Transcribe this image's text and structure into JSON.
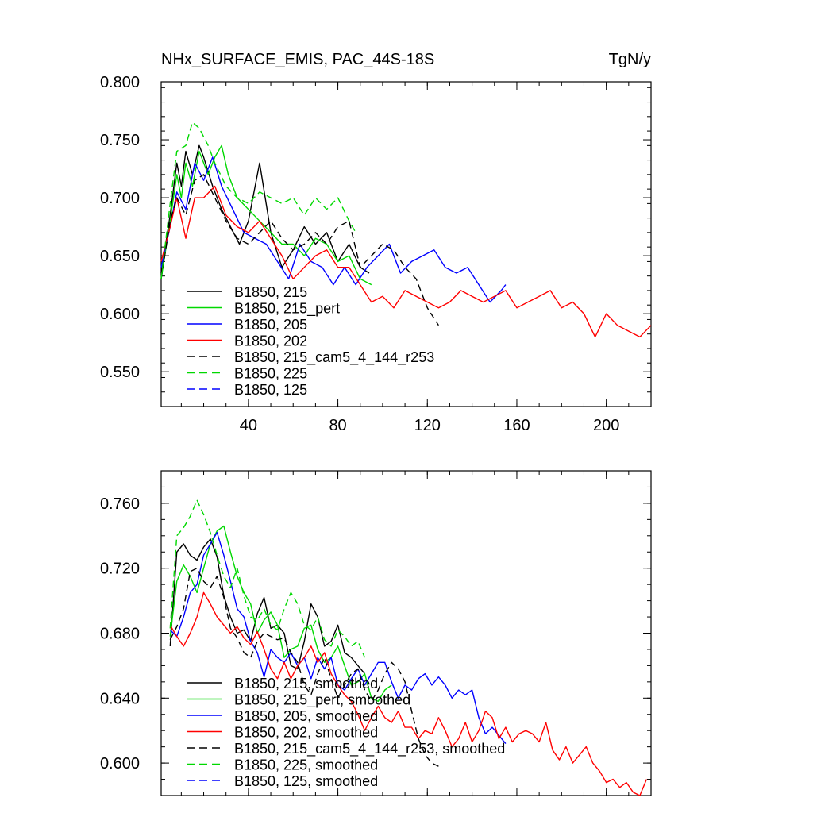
{
  "header": {
    "title": "NHx_SURFACE_EMIS, PAC_44S-18S",
    "units": "TgN/y"
  },
  "chart_data": [
    {
      "type": "line",
      "panel": "top",
      "xlim": [
        1,
        220
      ],
      "ylim": [
        0.52,
        0.8
      ],
      "x_ticks": [
        40,
        80,
        120,
        160,
        200
      ],
      "x_tick_labels": [
        "40",
        "80",
        "120",
        "160",
        "200"
      ],
      "y_ticks": [
        0.55,
        0.6,
        0.65,
        0.7,
        0.75,
        0.8
      ],
      "y_tick_labels": [
        "0.550",
        "0.600",
        "0.650",
        "0.700",
        "0.750",
        "0.800"
      ],
      "legend_position": "bottom-left",
      "series": [
        {
          "name": "B1850, 215",
          "color": "#000000",
          "dash": "solid",
          "x": [
            1,
            5,
            8,
            10,
            12,
            15,
            18,
            20,
            24,
            28,
            32,
            36,
            40,
            45,
            50,
            55,
            60,
            65,
            70,
            75,
            80,
            85,
            90,
            94
          ],
          "y": [
            0.635,
            0.685,
            0.73,
            0.71,
            0.74,
            0.72,
            0.745,
            0.735,
            0.71,
            0.69,
            0.675,
            0.66,
            0.68,
            0.73,
            0.67,
            0.64,
            0.655,
            0.675,
            0.66,
            0.67,
            0.645,
            0.66,
            0.64,
            0.635
          ]
        },
        {
          "name": "B1850, 215_pert",
          "color": "#00d800",
          "dash": "solid",
          "x": [
            1,
            5,
            8,
            10,
            12,
            15,
            18,
            22,
            25,
            28,
            31,
            35,
            40,
            45,
            50,
            55,
            60,
            65,
            70,
            75,
            80,
            85,
            90,
            95
          ],
          "y": [
            0.63,
            0.68,
            0.72,
            0.7,
            0.73,
            0.71,
            0.74,
            0.72,
            0.735,
            0.745,
            0.72,
            0.7,
            0.69,
            0.68,
            0.67,
            0.66,
            0.66,
            0.65,
            0.665,
            0.66,
            0.645,
            0.65,
            0.63,
            0.625
          ]
        },
        {
          "name": "B1850, 205",
          "color": "#0000ff",
          "dash": "solid",
          "x": [
            1,
            5,
            8,
            12,
            16,
            20,
            24,
            28,
            33,
            38,
            43,
            48,
            53,
            58,
            63,
            68,
            73,
            78,
            83,
            88,
            93,
            98,
            103,
            108,
            113,
            118,
            123,
            128,
            133,
            138,
            143,
            148,
            153,
            155
          ],
          "y": [
            0.64,
            0.675,
            0.705,
            0.69,
            0.73,
            0.715,
            0.735,
            0.71,
            0.69,
            0.67,
            0.665,
            0.66,
            0.645,
            0.63,
            0.66,
            0.645,
            0.64,
            0.625,
            0.64,
            0.625,
            0.64,
            0.65,
            0.66,
            0.635,
            0.645,
            0.65,
            0.655,
            0.64,
            0.635,
            0.64,
            0.625,
            0.61,
            0.62,
            0.625
          ]
        },
        {
          "name": "B1850, 202",
          "color": "#ff0000",
          "dash": "solid",
          "x": [
            1,
            5,
            8,
            12,
            16,
            20,
            25,
            30,
            35,
            40,
            45,
            50,
            55,
            60,
            65,
            70,
            75,
            80,
            85,
            90,
            95,
            100,
            105,
            110,
            115,
            120,
            125,
            130,
            135,
            140,
            145,
            150,
            155,
            160,
            165,
            170,
            175,
            180,
            185,
            190,
            195,
            200,
            205,
            210,
            215,
            220
          ],
          "y": [
            0.645,
            0.675,
            0.7,
            0.665,
            0.7,
            0.7,
            0.71,
            0.685,
            0.675,
            0.67,
            0.68,
            0.665,
            0.65,
            0.63,
            0.64,
            0.65,
            0.655,
            0.64,
            0.64,
            0.625,
            0.61,
            0.615,
            0.605,
            0.62,
            0.615,
            0.61,
            0.605,
            0.61,
            0.62,
            0.615,
            0.61,
            0.615,
            0.62,
            0.605,
            0.61,
            0.615,
            0.62,
            0.605,
            0.61,
            0.6,
            0.58,
            0.6,
            0.59,
            0.585,
            0.58,
            0.59
          ]
        },
        {
          "name": "B1850, 215_cam5_4_144_r253",
          "color": "#000000",
          "dash": "dashed",
          "x": [
            1,
            5,
            8,
            12,
            16,
            20,
            25,
            30,
            35,
            40,
            45,
            50,
            55,
            60,
            65,
            70,
            75,
            80,
            85,
            90,
            95,
            100,
            105,
            110,
            115,
            120,
            125
          ],
          "y": [
            0.63,
            0.68,
            0.7,
            0.685,
            0.715,
            0.72,
            0.7,
            0.68,
            0.665,
            0.66,
            0.67,
            0.68,
            0.665,
            0.655,
            0.66,
            0.67,
            0.66,
            0.675,
            0.68,
            0.64,
            0.65,
            0.66,
            0.655,
            0.64,
            0.63,
            0.605,
            0.59
          ]
        },
        {
          "name": "B1850, 225",
          "color": "#00d800",
          "dash": "dashed",
          "x": [
            1,
            5,
            8,
            12,
            15,
            18,
            22,
            25,
            30,
            35,
            40,
            45,
            50,
            55,
            60,
            65,
            70,
            75,
            80,
            85,
            88
          ],
          "y": [
            0.63,
            0.695,
            0.74,
            0.745,
            0.765,
            0.76,
            0.745,
            0.73,
            0.71,
            0.7,
            0.695,
            0.705,
            0.7,
            0.695,
            0.7,
            0.685,
            0.7,
            0.69,
            0.7,
            0.68,
            0.67
          ]
        },
        {
          "name": "B1850, 125",
          "color": "#0000ff",
          "dash": "dashed",
          "x": [],
          "y": []
        }
      ]
    },
    {
      "type": "line",
      "panel": "bottom",
      "xlim": [
        1,
        220
      ],
      "ylim": [
        0.58,
        0.78
      ],
      "x_ticks": [
        40,
        80,
        120,
        160,
        200
      ],
      "x_tick_labels": [],
      "y_ticks": [
        0.6,
        0.64,
        0.68,
        0.72,
        0.76
      ],
      "y_tick_labels": [
        "0.600",
        "0.640",
        "0.680",
        "0.720",
        "0.760"
      ],
      "legend_position": "bottom-left",
      "series": [
        {
          "name": "B1850, 215, smoothed",
          "color": "#000000",
          "dash": "solid",
          "x": [
            5,
            8,
            11,
            14,
            17,
            20,
            23,
            26,
            29,
            32,
            35,
            38,
            41,
            44,
            47,
            50,
            53,
            56,
            59,
            62,
            65,
            68,
            71,
            74,
            77,
            80,
            83,
            86,
            89,
            92
          ],
          "y": [
            0.672,
            0.73,
            0.735,
            0.728,
            0.725,
            0.733,
            0.738,
            0.727,
            0.703,
            0.69,
            0.68,
            0.682,
            0.675,
            0.692,
            0.702,
            0.683,
            0.685,
            0.68,
            0.66,
            0.658,
            0.675,
            0.698,
            0.69,
            0.672,
            0.675,
            0.685,
            0.668,
            0.665,
            0.66,
            0.655
          ]
        },
        {
          "name": "B1850, 215_pert, smoothed",
          "color": "#00d800",
          "dash": "solid",
          "x": [
            5,
            8,
            11,
            14,
            17,
            20,
            23,
            26,
            29,
            32,
            35,
            38,
            41,
            44,
            47,
            50,
            53,
            56,
            59,
            62,
            65,
            68,
            71,
            74,
            77,
            80,
            83,
            86,
            89,
            92,
            95,
            98,
            101,
            104
          ],
          "y": [
            0.678,
            0.712,
            0.722,
            0.715,
            0.705,
            0.72,
            0.735,
            0.743,
            0.746,
            0.73,
            0.715,
            0.705,
            0.698,
            0.68,
            0.688,
            0.693,
            0.685,
            0.665,
            0.67,
            0.672,
            0.683,
            0.685,
            0.67,
            0.662,
            0.665,
            0.672,
            0.66,
            0.648,
            0.65,
            0.655,
            0.64,
            0.638,
            0.645,
            0.648
          ]
        },
        {
          "name": "B1850, 205, smoothed",
          "color": "#0000ff",
          "dash": "solid",
          "x": [
            5,
            8,
            11,
            14,
            17,
            20,
            23,
            26,
            29,
            32,
            35,
            38,
            41,
            44,
            47,
            50,
            53,
            56,
            59,
            62,
            65,
            68,
            71,
            74,
            77,
            80,
            83,
            86,
            89,
            92,
            95,
            98,
            101,
            104,
            107,
            110,
            113,
            116,
            119,
            122,
            125,
            128,
            131,
            134,
            137,
            140,
            143,
            146,
            149,
            152,
            155
          ],
          "y": [
            0.682,
            0.678,
            0.69,
            0.705,
            0.71,
            0.728,
            0.735,
            0.742,
            0.728,
            0.712,
            0.695,
            0.69,
            0.675,
            0.668,
            0.653,
            0.67,
            0.665,
            0.662,
            0.668,
            0.66,
            0.665,
            0.652,
            0.665,
            0.658,
            0.665,
            0.648,
            0.645,
            0.652,
            0.658,
            0.648,
            0.655,
            0.662,
            0.662,
            0.65,
            0.64,
            0.648,
            0.645,
            0.652,
            0.655,
            0.648,
            0.653,
            0.648,
            0.64,
            0.645,
            0.642,
            0.645,
            0.628,
            0.618,
            0.622,
            0.617,
            0.612
          ]
        },
        {
          "name": "B1850, 202, smoothed",
          "color": "#ff0000",
          "dash": "solid",
          "x": [
            5,
            8,
            11,
            14,
            17,
            20,
            23,
            26,
            29,
            32,
            35,
            38,
            41,
            44,
            47,
            50,
            53,
            56,
            59,
            62,
            65,
            68,
            71,
            74,
            77,
            80,
            83,
            86,
            89,
            92,
            95,
            98,
            101,
            104,
            107,
            110,
            113,
            116,
            119,
            122,
            125,
            128,
            131,
            134,
            137,
            140,
            143,
            146,
            149,
            152,
            155,
            158,
            161,
            164,
            167,
            170,
            173,
            176,
            179,
            182,
            185,
            188,
            191,
            194,
            197,
            200,
            203,
            206,
            209,
            212,
            215,
            218
          ],
          "y": [
            0.685,
            0.678,
            0.672,
            0.68,
            0.69,
            0.705,
            0.698,
            0.69,
            0.685,
            0.68,
            0.684,
            0.677,
            0.673,
            0.681,
            0.67,
            0.658,
            0.652,
            0.662,
            0.652,
            0.66,
            0.665,
            0.672,
            0.662,
            0.668,
            0.655,
            0.648,
            0.642,
            0.638,
            0.63,
            0.62,
            0.628,
            0.635,
            0.628,
            0.625,
            0.632,
            0.622,
            0.622,
            0.615,
            0.62,
            0.618,
            0.628,
            0.62,
            0.61,
            0.615,
            0.625,
            0.613,
            0.62,
            0.632,
            0.628,
            0.615,
            0.622,
            0.613,
            0.618,
            0.62,
            0.618,
            0.613,
            0.625,
            0.608,
            0.602,
            0.61,
            0.6,
            0.605,
            0.61,
            0.6,
            0.595,
            0.588,
            0.59,
            0.585,
            0.588,
            0.582,
            0.58,
            0.59
          ]
        },
        {
          "name": "B1850, 215_cam5_4_144_r253, smoothed",
          "color": "#000000",
          "dash": "dashed",
          "x": [
            5,
            8,
            11,
            14,
            17,
            20,
            23,
            26,
            29,
            32,
            35,
            38,
            41,
            44,
            47,
            50,
            53,
            56,
            59,
            62,
            65,
            68,
            71,
            74,
            77,
            80,
            83,
            86,
            89,
            92,
            95,
            98,
            101,
            104,
            107,
            110,
            113,
            116,
            119,
            122,
            125
          ],
          "y": [
            0.676,
            0.684,
            0.695,
            0.718,
            0.72,
            0.712,
            0.708,
            0.715,
            0.702,
            0.683,
            0.677,
            0.668,
            0.665,
            0.675,
            0.68,
            0.678,
            0.676,
            0.677,
            0.668,
            0.662,
            0.648,
            0.642,
            0.655,
            0.665,
            0.652,
            0.64,
            0.648,
            0.655,
            0.658,
            0.645,
            0.638,
            0.645,
            0.655,
            0.662,
            0.658,
            0.65,
            0.632,
            0.615,
            0.605,
            0.6,
            0.598
          ]
        },
        {
          "name": "B1850, 225, smoothed",
          "color": "#00d800",
          "dash": "dashed",
          "x": [
            5,
            8,
            11,
            14,
            17,
            20,
            23,
            26,
            29,
            32,
            35,
            38,
            41,
            44,
            47,
            50,
            53,
            56,
            59,
            62,
            65,
            68,
            71,
            74,
            77,
            80,
            83,
            86,
            89,
            92
          ],
          "y": [
            0.683,
            0.74,
            0.745,
            0.752,
            0.762,
            0.753,
            0.742,
            0.728,
            0.715,
            0.708,
            0.72,
            0.703,
            0.69,
            0.688,
            0.695,
            0.685,
            0.682,
            0.695,
            0.705,
            0.698,
            0.685,
            0.682,
            0.69,
            0.676,
            0.672,
            0.682,
            0.678,
            0.672,
            0.675,
            0.665
          ]
        },
        {
          "name": "B1850, 125, smoothed",
          "color": "#0000ff",
          "dash": "dashed",
          "x": [],
          "y": []
        }
      ]
    }
  ]
}
